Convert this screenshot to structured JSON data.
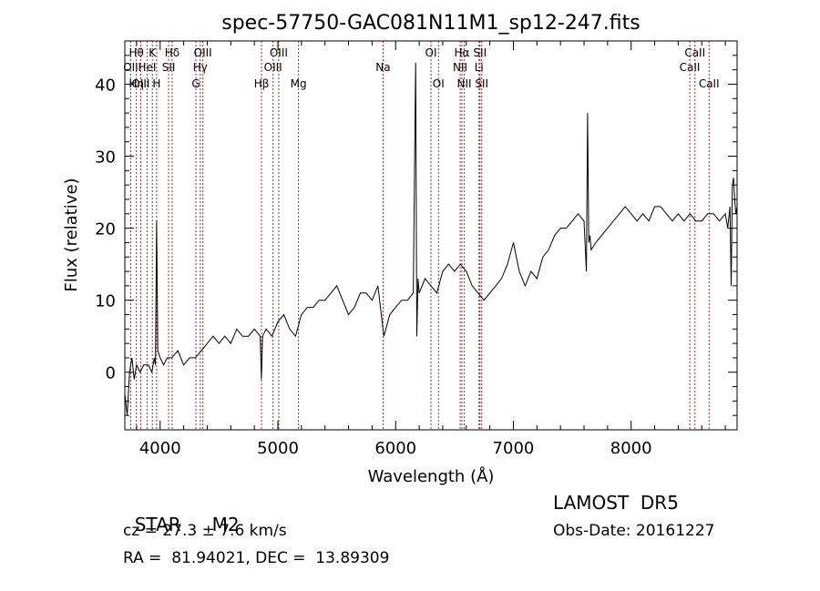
{
  "chart_data": {
    "type": "line",
    "title": "spec-57750-GAC081N11M1_sp12-247.fits",
    "xlabel": "Wavelength (Å)",
    "ylabel": "Flux (relative)",
    "xlim": [
      3700,
      8900
    ],
    "ylim": [
      -8,
      46
    ],
    "xticks": [
      4000,
      5000,
      6000,
      7000,
      8000
    ],
    "yticks": [
      0,
      10,
      20,
      30,
      40
    ],
    "line_color": "#000000",
    "marker_color": "#b22222",
    "series": [
      {
        "x": [
          3700,
          3720,
          3740,
          3760,
          3780,
          3800,
          3830,
          3860,
          3900,
          3930,
          3950,
          3960,
          3970,
          3980,
          4000,
          4030,
          4060,
          4100,
          4150,
          4200,
          4250,
          4300,
          4350,
          4400,
          4450,
          4500,
          4550,
          4600,
          4650,
          4700,
          4750,
          4800,
          4850,
          4860,
          4870,
          4900,
          4950,
          5000,
          5050,
          5100,
          5150,
          5200,
          5250,
          5300,
          5350,
          5400,
          5450,
          5500,
          5550,
          5600,
          5650,
          5700,
          5750,
          5800,
          5850,
          5900,
          5950,
          6000,
          6050,
          6100,
          6150,
          6170,
          6180,
          6190,
          6200,
          6250,
          6300,
          6350,
          6400,
          6450,
          6500,
          6550,
          6600,
          6650,
          6700,
          6750,
          6800,
          6850,
          6900,
          6950,
          7000,
          7050,
          7100,
          7150,
          7200,
          7250,
          7300,
          7350,
          7400,
          7450,
          7500,
          7550,
          7600,
          7620,
          7630,
          7640,
          7650,
          7660,
          7700,
          7750,
          7800,
          7850,
          7900,
          7950,
          8000,
          8050,
          8100,
          8150,
          8200,
          8250,
          8300,
          8350,
          8400,
          8450,
          8500,
          8550,
          8600,
          8650,
          8700,
          8750,
          8800,
          8820,
          8840,
          8850,
          8860,
          8870,
          8880,
          8890,
          8900
        ],
        "y": [
          -3,
          -6,
          0,
          2,
          -1,
          1,
          0,
          1,
          1,
          0,
          2,
          1,
          21,
          3,
          2,
          1,
          2,
          2,
          3,
          1,
          2,
          2,
          3,
          4,
          5,
          4,
          5,
          4,
          6,
          5,
          5,
          6,
          5,
          -1,
          5,
          6,
          5,
          7,
          8,
          6,
          5,
          8,
          9,
          9,
          10,
          10,
          11,
          12,
          10,
          8,
          9,
          11,
          11,
          10,
          12,
          5,
          8,
          9,
          10,
          10,
          11,
          43,
          5,
          13,
          11,
          13,
          12,
          11,
          14,
          15,
          14,
          15,
          14,
          12,
          11,
          10,
          11,
          12,
          13,
          15,
          18,
          14,
          12,
          14,
          13,
          16,
          17,
          19,
          20,
          20,
          21,
          22,
          21,
          14,
          36,
          18,
          19,
          17,
          18,
          19,
          20,
          21,
          22,
          23,
          22,
          21,
          22,
          21,
          23,
          23,
          22,
          21,
          22,
          21,
          22,
          21,
          21,
          22,
          22,
          21,
          22,
          20,
          23,
          12,
          26,
          27,
          24,
          22,
          23
        ]
      }
    ],
    "lines": [
      {
        "x": 3750,
        "labels": [
          "OII"
        ],
        "rows": [
          1
        ]
      },
      {
        "x": 3798,
        "labels": [
          "Hθ",
          "Hη"
        ],
        "rows": [
          0,
          2
        ]
      },
      {
        "x": 3835,
        "labels": [
          "OIII"
        ],
        "rows": [
          2
        ]
      },
      {
        "x": 3889,
        "labels": [
          "HeI"
        ],
        "rows": [
          1
        ]
      },
      {
        "x": 3934,
        "labels": [
          "K"
        ],
        "rows": [
          0
        ]
      },
      {
        "x": 3970,
        "labels": [
          "H"
        ],
        "rows": [
          2
        ]
      },
      {
        "x": 4072,
        "labels": [
          "SII"
        ],
        "rows": [
          1
        ]
      },
      {
        "x": 4102,
        "labels": [
          "Hδ"
        ],
        "rows": [
          0
        ]
      },
      {
        "x": 4304,
        "labels": [
          "G"
        ],
        "rows": [
          2
        ]
      },
      {
        "x": 4341,
        "labels": [
          "Hγ"
        ],
        "rows": [
          1
        ]
      },
      {
        "x": 4363,
        "labels": [
          "OIII"
        ],
        "rows": [
          0
        ]
      },
      {
        "x": 4861,
        "labels": [
          "Hβ"
        ],
        "rows": [
          2
        ]
      },
      {
        "x": 4959,
        "labels": [
          "OIII"
        ],
        "rows": [
          1
        ]
      },
      {
        "x": 5007,
        "labels": [
          "OIII"
        ],
        "rows": [
          0
        ]
      },
      {
        "x": 5175,
        "labels": [
          "Mg"
        ],
        "rows": [
          2
        ]
      },
      {
        "x": 5893,
        "labels": [
          "Na"
        ],
        "rows": [
          1
        ]
      },
      {
        "x": 6300,
        "labels": [
          "OI"
        ],
        "rows": [
          0
        ]
      },
      {
        "x": 6364,
        "labels": [
          "OI"
        ],
        "rows": [
          2
        ]
      },
      {
        "x": 6548,
        "labels": [
          "NII"
        ],
        "rows": [
          1
        ]
      },
      {
        "x": 6563,
        "labels": [
          "Hα"
        ],
        "rows": [
          0
        ]
      },
      {
        "x": 6583,
        "labels": [
          "NII"
        ],
        "rows": [
          2
        ]
      },
      {
        "x": 6708,
        "labels": [
          "Li"
        ],
        "rows": [
          1
        ]
      },
      {
        "x": 6716,
        "labels": [
          "SII"
        ],
        "rows": [
          0
        ]
      },
      {
        "x": 6731,
        "labels": [
          "SII"
        ],
        "rows": [
          2
        ]
      },
      {
        "x": 8498,
        "labels": [
          "CaII"
        ],
        "rows": [
          1
        ]
      },
      {
        "x": 8542,
        "labels": [
          "CaII"
        ],
        "rows": [
          0
        ]
      },
      {
        "x": 8662,
        "labels": [
          "CaII"
        ],
        "rows": [
          2
        ]
      }
    ]
  },
  "info": {
    "class": "STAR",
    "subclass": "M2",
    "survey": "LAMOST  DR5",
    "cz": "cz = 27.3 ± 7.6 km/s",
    "obsdate": "Obs-Date: 20161227",
    "radec": "RA =  81.94021, DEC =  13.89309"
  }
}
